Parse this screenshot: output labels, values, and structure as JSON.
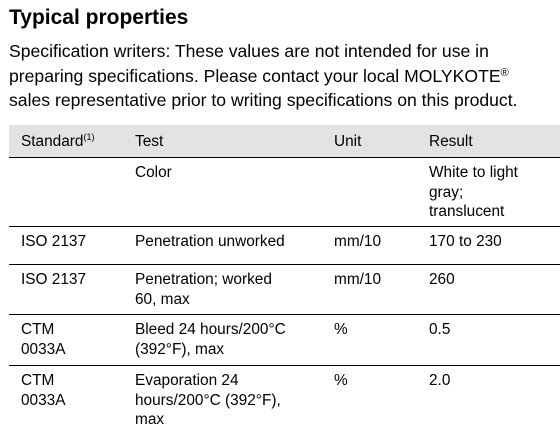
{
  "title": "Typical properties",
  "intro": {
    "line1": "Specification writers: These values are not intended for use in",
    "line2_prefix": "preparing specifications. Please contact your local MOLYKOTE",
    "line2_mark": "®",
    "line3": "sales representative prior to writing specifications on this product."
  },
  "table": {
    "headers": {
      "standard": "Standard",
      "standard_note": "(1)",
      "test": "Test",
      "unit": "Unit",
      "result": "Result"
    },
    "rows": [
      {
        "standard": [],
        "test": [
          "Color"
        ],
        "unit": [],
        "result": [
          "White to light",
          "gray;",
          "translucent"
        ]
      },
      {
        "standard": [
          "ISO 2137"
        ],
        "test": [
          "Penetration unworked"
        ],
        "unit": [
          "mm/10"
        ],
        "result": [
          "170 to 230"
        ]
      },
      {
        "standard": [
          "ISO 2137"
        ],
        "test": [
          "Penetration; worked",
          "60, max"
        ],
        "unit": [
          "mm/10"
        ],
        "result": [
          "260"
        ]
      },
      {
        "standard": [
          "CTM",
          "0033A"
        ],
        "test": [
          "Bleed 24 hours/200°C",
          "(392°F), max"
        ],
        "unit": [
          "%"
        ],
        "result": [
          "0.5"
        ]
      },
      {
        "standard": [
          "CTM",
          "0033A"
        ],
        "test": [
          "Evaporation 24",
          "hours/200°C (392°F),",
          "max"
        ],
        "unit": [
          "%"
        ],
        "result": [
          "2.0"
        ]
      }
    ]
  }
}
